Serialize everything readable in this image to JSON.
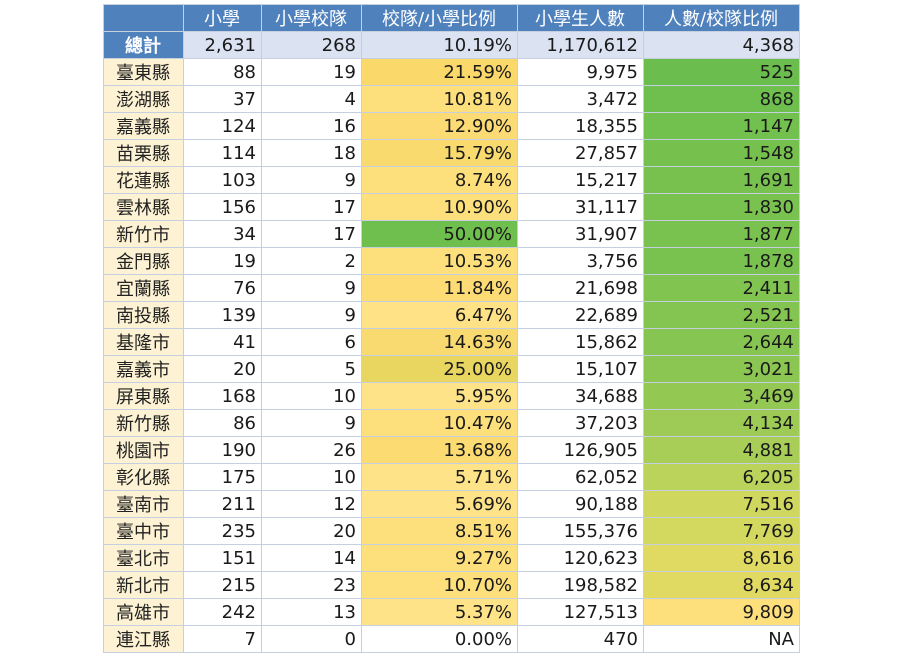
{
  "table": {
    "headers": [
      "",
      "小學",
      "小學校隊",
      "校隊/小學比例",
      "小學生人數",
      "人數/校隊比例"
    ],
    "total": {
      "label": "總計",
      "schools": "2,631",
      "teams": "268",
      "team_ratio": "10.19%",
      "students": "1,170,612",
      "students_per_team": "4,368"
    },
    "rows": [
      {
        "label": "臺東縣",
        "schools": "88",
        "teams": "19",
        "team_ratio": "21.59%",
        "students": "9,975",
        "students_per_team": "525",
        "ratio_color": "#fbd86a",
        "spt_color": "#6bbe4d"
      },
      {
        "label": "澎湖縣",
        "schools": "37",
        "teams": "4",
        "team_ratio": "10.81%",
        "students": "3,472",
        "students_per_team": "868",
        "ratio_color": "#fde07c",
        "spt_color": "#6ebf4d"
      },
      {
        "label": "嘉義縣",
        "schools": "124",
        "teams": "16",
        "team_ratio": "12.90%",
        "students": "18,355",
        "students_per_team": "1,147",
        "ratio_color": "#fddb74",
        "spt_color": "#72c04e"
      },
      {
        "label": "苗栗縣",
        "schools": "114",
        "teams": "18",
        "team_ratio": "15.79%",
        "students": "27,857",
        "students_per_team": "1,548",
        "ratio_color": "#f8da6e",
        "spt_color": "#76c14e"
      },
      {
        "label": "花蓮縣",
        "schools": "103",
        "teams": "9",
        "team_ratio": "8.74%",
        "students": "15,217",
        "students_per_team": "1,691",
        "ratio_color": "#fde07c",
        "spt_color": "#78c14f"
      },
      {
        "label": "雲林縣",
        "schools": "156",
        "teams": "17",
        "team_ratio": "10.90%",
        "students": "31,117",
        "students_per_team": "1,830",
        "ratio_color": "#fde07c",
        "spt_color": "#7ac24f"
      },
      {
        "label": "新竹市",
        "schools": "34",
        "teams": "17",
        "team_ratio": "50.00%",
        "students": "31,907",
        "students_per_team": "1,877",
        "ratio_color": "#6ebf4d",
        "spt_color": "#7ac24f"
      },
      {
        "label": "金門縣",
        "schools": "19",
        "teams": "2",
        "team_ratio": "10.53%",
        "students": "3,756",
        "students_per_team": "1,878",
        "ratio_color": "#fde07c",
        "spt_color": "#7ac24f"
      },
      {
        "label": "宜蘭縣",
        "schools": "76",
        "teams": "9",
        "team_ratio": "11.84%",
        "students": "21,698",
        "students_per_team": "2,411",
        "ratio_color": "#fddc76",
        "spt_color": "#82c450"
      },
      {
        "label": "南投縣",
        "schools": "139",
        "teams": "9",
        "team_ratio": "6.47%",
        "students": "22,689",
        "students_per_team": "2,521",
        "ratio_color": "#fee285",
        "spt_color": "#84c450"
      },
      {
        "label": "基隆市",
        "schools": "41",
        "teams": "6",
        "team_ratio": "14.63%",
        "students": "15,862",
        "students_per_team": "2,644",
        "ratio_color": "#f9da70",
        "spt_color": "#86c551"
      },
      {
        "label": "嘉義市",
        "schools": "20",
        "teams": "5",
        "team_ratio": "25.00%",
        "students": "15,107",
        "students_per_team": "3,021",
        "ratio_color": "#e8d660",
        "spt_color": "#8cc652"
      },
      {
        "label": "屏東縣",
        "schools": "168",
        "teams": "10",
        "team_ratio": "5.95%",
        "students": "34,688",
        "students_per_team": "3,469",
        "ratio_color": "#fee388",
        "spt_color": "#93c853"
      },
      {
        "label": "新竹縣",
        "schools": "86",
        "teams": "9",
        "team_ratio": "10.47%",
        "students": "37,203",
        "students_per_team": "4,134",
        "ratio_color": "#fde07c",
        "spt_color": "#9dcb55"
      },
      {
        "label": "桃園市",
        "schools": "190",
        "teams": "26",
        "team_ratio": "13.68%",
        "students": "126,905",
        "students_per_team": "4,881",
        "ratio_color": "#fbdb72",
        "spt_color": "#a8ce57"
      },
      {
        "label": "彰化縣",
        "schools": "175",
        "teams": "10",
        "team_ratio": "5.71%",
        "students": "62,052",
        "students_per_team": "6,205",
        "ratio_color": "#fee388",
        "spt_color": "#bcd35b"
      },
      {
        "label": "臺南市",
        "schools": "211",
        "teams": "12",
        "team_ratio": "5.69%",
        "students": "90,188",
        "students_per_team": "7,516",
        "ratio_color": "#fee388",
        "spt_color": "#cfd75e"
      },
      {
        "label": "臺中市",
        "schools": "235",
        "teams": "20",
        "team_ratio": "8.51%",
        "students": "155,376",
        "students_per_team": "7,769",
        "ratio_color": "#fde07c",
        "spt_color": "#d3d85f"
      },
      {
        "label": "臺北市",
        "schools": "151",
        "teams": "14",
        "team_ratio": "9.27%",
        "students": "120,623",
        "students_per_team": "8,616",
        "ratio_color": "#fde07c",
        "spt_color": "#e0da62"
      },
      {
        "label": "新北市",
        "schools": "215",
        "teams": "23",
        "team_ratio": "10.70%",
        "students": "198,582",
        "students_per_team": "8,634",
        "ratio_color": "#fde07c",
        "spt_color": "#e0da62"
      },
      {
        "label": "高雄市",
        "schools": "242",
        "teams": "13",
        "team_ratio": "5.37%",
        "students": "127,513",
        "students_per_team": "9,809",
        "ratio_color": "#fee388",
        "spt_color": "#fde07c"
      },
      {
        "label": "連江縣",
        "schools": "7",
        "teams": "0",
        "team_ratio": "0.00%",
        "students": "470",
        "students_per_team": "NA",
        "ratio_color": "#ffffff",
        "spt_color": "#ffffff"
      }
    ]
  }
}
